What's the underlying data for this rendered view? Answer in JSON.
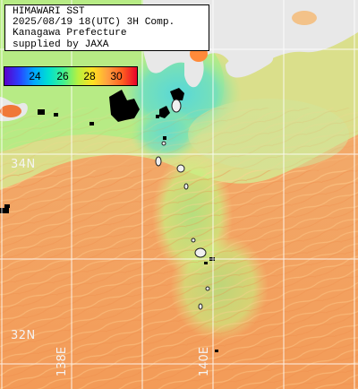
{
  "title": {
    "lines": [
      "HIMAWARI SST",
      "2025/08/19 18(UTC) 3H Comp.",
      "Kanagawa Prefecture",
      "supplied by JAXA"
    ]
  },
  "legend": {
    "ticks": [
      "24",
      "26",
      "28",
      "30"
    ],
    "color_stops": [
      "#5a00c8",
      "#2a40ff",
      "#00a8ff",
      "#00e0d0",
      "#40f090",
      "#b8f040",
      "#ffe020",
      "#ffa040",
      "#ff6020",
      "#e8002a"
    ]
  },
  "graticule": {
    "lat_labels": [
      "34N",
      "32N"
    ],
    "lon_labels": [
      "138E",
      "140E"
    ]
  },
  "colors": {
    "land": "#e8e8e8",
    "cloud_mask": "#000000",
    "warm_sea": "#f4a368",
    "mid_sea": "#b8ec7c",
    "cool_sea": "#70dcc4",
    "grid": "#ffffff"
  }
}
